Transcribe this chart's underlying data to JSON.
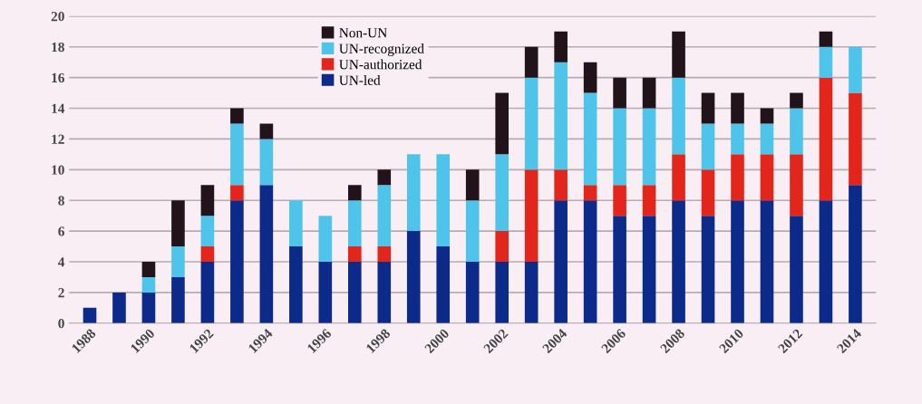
{
  "chart_data": {
    "type": "bar",
    "stacked": true,
    "categories": [
      "1988",
      null,
      "1990",
      null,
      "1992",
      null,
      "1994",
      null,
      "1996",
      null,
      "1998",
      null,
      "2000",
      null,
      "2002",
      null,
      "2004",
      null,
      "2006",
      null,
      "2008",
      null,
      "2010",
      null,
      "2012",
      null,
      "2014"
    ],
    "series": [
      {
        "name": "UN-led",
        "color": "#0b2a8a",
        "values": [
          1,
          2,
          2,
          3,
          4,
          8,
          9,
          5,
          4,
          4,
          4,
          6,
          5,
          4,
          4,
          4,
          8,
          8,
          7,
          7,
          8,
          7,
          8,
          8,
          7,
          8,
          9
        ]
      },
      {
        "name": "UN-authorized",
        "color": "#e2261c",
        "values": [
          0,
          0,
          0,
          0,
          1,
          1,
          0,
          0,
          0,
          1,
          1,
          0,
          0,
          0,
          2,
          6,
          2,
          1,
          2,
          2,
          3,
          3,
          3,
          3,
          4,
          8,
          6
        ]
      },
      {
        "name": "UN-recognized",
        "color": "#4fc4ea",
        "values": [
          0,
          0,
          1,
          2,
          2,
          4,
          3,
          3,
          3,
          3,
          4,
          5,
          6,
          4,
          5,
          6,
          7,
          6,
          5,
          5,
          5,
          3,
          2,
          2,
          3,
          2,
          3
        ]
      },
      {
        "name": "Non-UN",
        "color": "#22121a",
        "values": [
          0,
          0,
          1,
          3,
          2,
          1,
          1,
          0,
          0,
          1,
          1,
          0,
          0,
          2,
          4,
          2,
          2,
          2,
          2,
          2,
          3,
          2,
          2,
          1,
          1,
          1,
          0
        ]
      }
    ],
    "ylim": [
      0,
      20
    ],
    "yticks": [
      0,
      2,
      4,
      6,
      8,
      10,
      12,
      14,
      16,
      18,
      20
    ],
    "grid": "y",
    "legend": "top left"
  }
}
